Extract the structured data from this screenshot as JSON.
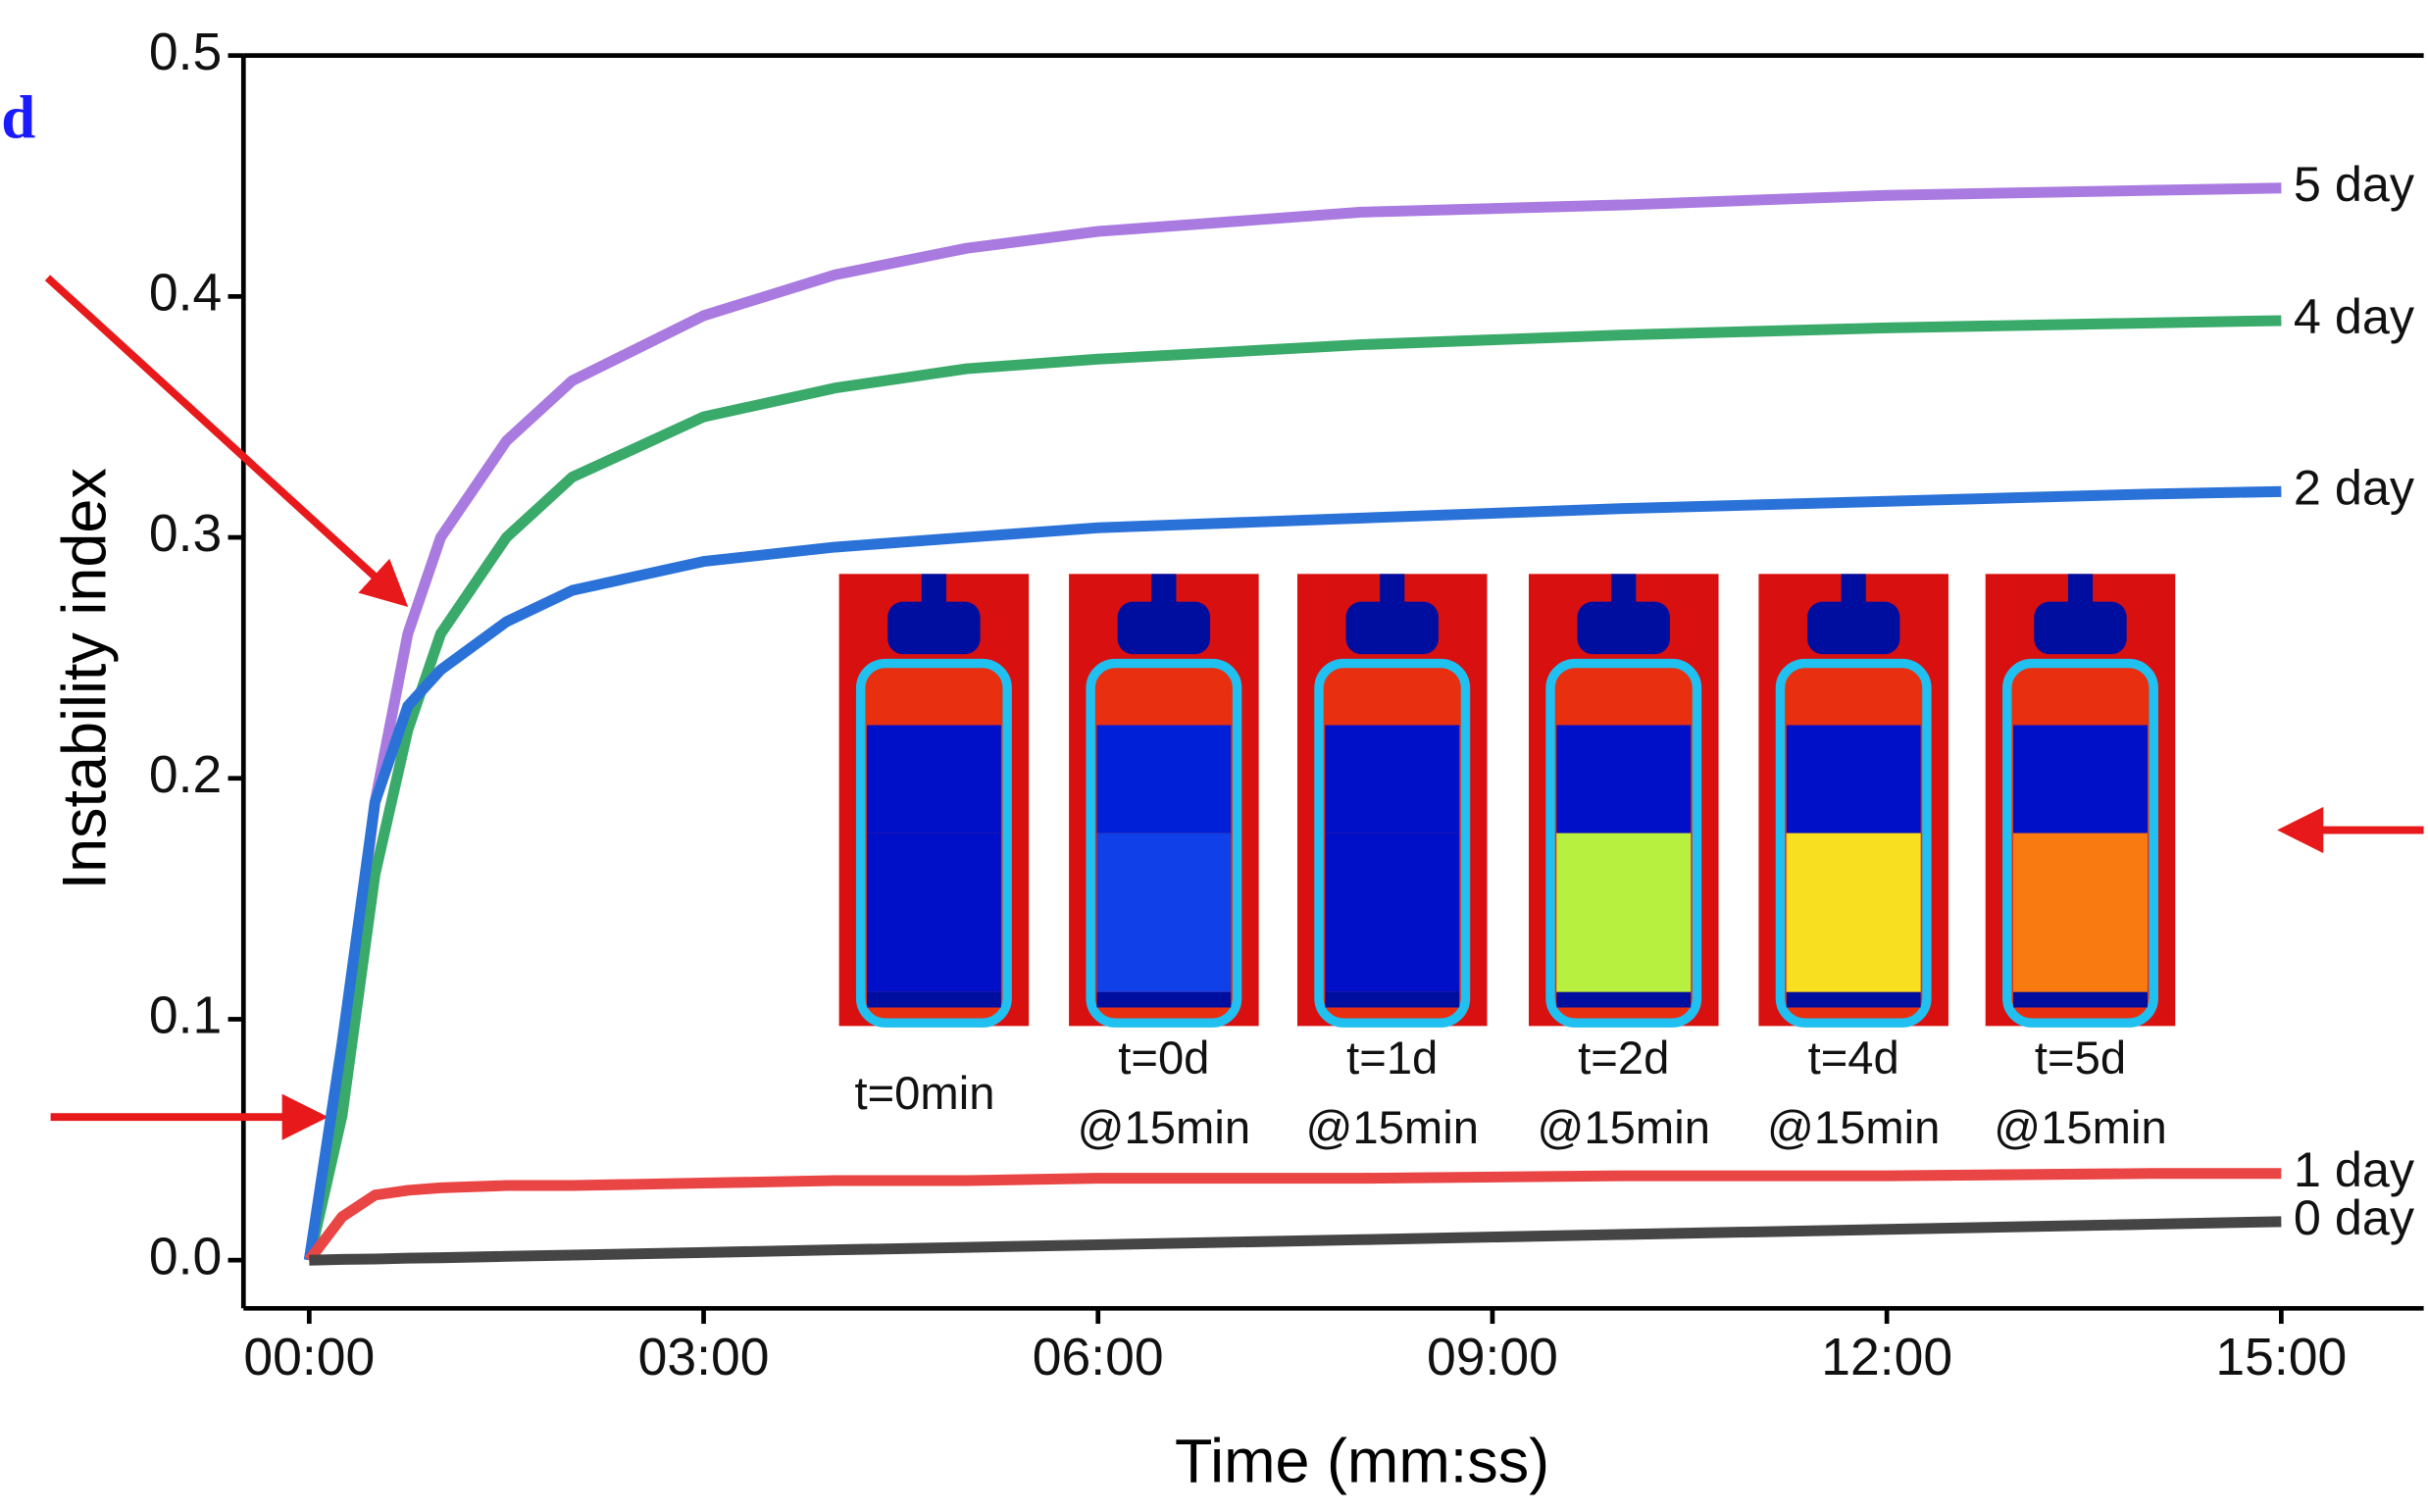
{
  "chart_data": {
    "type": "line",
    "y_label": "Instability index",
    "x_label": "Time (mm:ss)",
    "annotations": [
      "d"
    ],
    "x": [
      0,
      15,
      30,
      45,
      60,
      90,
      120,
      180,
      240,
      300,
      360,
      480,
      600,
      720,
      840,
      900
    ],
    "xlim": [
      -30,
      965
    ],
    "ylim": [
      -0.02,
      0.5
    ],
    "xticks": [
      {
        "value": 0,
        "label": "00:00"
      },
      {
        "value": 180,
        "label": "03:00"
      },
      {
        "value": 360,
        "label": "06:00"
      },
      {
        "value": 540,
        "label": "09:00"
      },
      {
        "value": 720,
        "label": "12:00"
      },
      {
        "value": 900,
        "label": "15:00"
      }
    ],
    "yticks": [
      {
        "value": 0,
        "label": "0.0"
      },
      0.1,
      0.2,
      0.3,
      0.4,
      0.5
    ],
    "series": [
      {
        "name": "5 day",
        "color": "#a97ae0",
        "values": [
          0,
          0.08,
          0.19,
          0.26,
          0.3,
          0.34,
          0.365,
          0.392,
          0.409,
          0.42,
          0.427,
          0.435,
          0.438,
          0.442,
          0.444,
          0.445
        ]
      },
      {
        "name": "4 day",
        "color": "#3aaa6a",
        "values": [
          0,
          0.06,
          0.16,
          0.22,
          0.26,
          0.3,
          0.325,
          0.35,
          0.362,
          0.37,
          0.374,
          0.38,
          0.384,
          0.387,
          0.389,
          0.39
        ]
      },
      {
        "name": "2 day",
        "color": "#2a72d8",
        "values": [
          0,
          0.09,
          0.19,
          0.23,
          0.245,
          0.265,
          0.278,
          0.29,
          0.296,
          0.3,
          0.304,
          0.308,
          0.312,
          0.315,
          0.318,
          0.319
        ]
      },
      {
        "name": "1 day",
        "color": "#ea4545",
        "values": [
          0,
          0.018,
          0.027,
          0.029,
          0.03,
          0.031,
          0.031,
          0.032,
          0.033,
          0.033,
          0.034,
          0.034,
          0.035,
          0.035,
          0.036,
          0.036
        ]
      },
      {
        "name": "0 day",
        "color": "#454545",
        "values": [
          0,
          0.0003,
          0.0005,
          0.0008,
          0.001,
          0.0016,
          0.0021,
          0.0032,
          0.0043,
          0.0053,
          0.0064,
          0.0085,
          0.0107,
          0.0128,
          0.0149,
          0.016
        ]
      }
    ],
    "inset": [
      {
        "lines": [
          "t=0min"
        ]
      },
      {
        "lines": [
          "t=0d",
          "@15min"
        ]
      },
      {
        "lines": [
          "t=1d",
          "@15min"
        ]
      },
      {
        "lines": [
          "t=2d",
          "@15min"
        ]
      },
      {
        "lines": [
          "t=4d",
          "@15min"
        ]
      },
      {
        "lines": [
          "t=5d",
          "@15min"
        ]
      }
    ]
  }
}
